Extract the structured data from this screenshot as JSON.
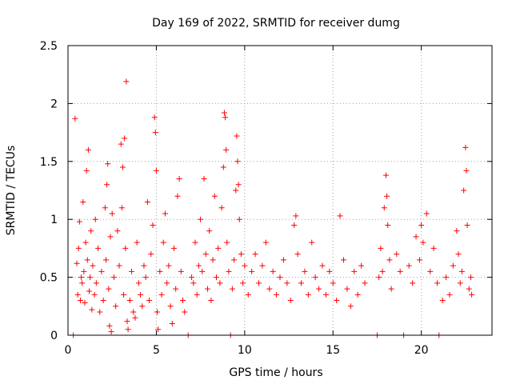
{
  "chart_data": {
    "type": "scatter",
    "title": "Day 169 of 2022, SRMTID for receiver dumg",
    "xlabel": "GPS time / hours",
    "ylabel": "SRMTID / TECUs",
    "xlim": [
      0,
      24
    ],
    "ylim": [
      0,
      2.5
    ],
    "xticks": [
      0,
      5,
      10,
      15,
      20
    ],
    "xtick_labels": [
      "0",
      "5",
      "10",
      "15",
      "20"
    ],
    "yticks": [
      0,
      0.5,
      1,
      1.5,
      2,
      2.5
    ],
    "ytick_labels": [
      "0",
      "0.5",
      "1",
      "1.5",
      "2",
      "2.5"
    ],
    "grid": true,
    "marker": "+",
    "color": "#ff0000",
    "series": [
      {
        "points": [
          [
            0.3,
            0.0
          ],
          [
            0.4,
            1.87
          ],
          [
            0.5,
            0.62
          ],
          [
            0.55,
            0.35
          ],
          [
            0.6,
            0.75
          ],
          [
            0.65,
            0.98
          ],
          [
            0.7,
            0.3
          ],
          [
            0.75,
            0.5
          ],
          [
            0.8,
            0.45
          ],
          [
            0.85,
            1.15
          ],
          [
            0.9,
            0.55
          ],
          [
            0.95,
            0.28
          ],
          [
            1.0,
            0.8
          ],
          [
            1.05,
            1.42
          ],
          [
            1.1,
            0.65
          ],
          [
            1.15,
            1.6
          ],
          [
            1.2,
            0.38
          ],
          [
            1.25,
            0.5
          ],
          [
            1.3,
            0.9
          ],
          [
            1.35,
            0.22
          ],
          [
            1.4,
            0.6
          ],
          [
            1.5,
            0.35
          ],
          [
            1.55,
            1.0
          ],
          [
            1.6,
            0.45
          ],
          [
            1.7,
            0.75
          ],
          [
            1.8,
            0.2
          ],
          [
            1.9,
            0.55
          ],
          [
            2.0,
            0.3
          ],
          [
            2.1,
            1.1
          ],
          [
            2.15,
            0.65
          ],
          [
            2.2,
            1.3
          ],
          [
            2.25,
            1.48
          ],
          [
            2.3,
            0.4
          ],
          [
            2.35,
            0.08
          ],
          [
            2.4,
            0.85
          ],
          [
            2.45,
            0.03
          ],
          [
            2.5,
            1.05
          ],
          [
            2.6,
            0.5
          ],
          [
            2.7,
            0.25
          ],
          [
            2.8,
            0.9
          ],
          [
            2.9,
            0.6
          ],
          [
            3.0,
            1.65
          ],
          [
            3.05,
            1.1
          ],
          [
            3.1,
            1.45
          ],
          [
            3.15,
            0.35
          ],
          [
            3.2,
            1.7
          ],
          [
            3.25,
            0.75
          ],
          [
            3.3,
            2.19
          ],
          [
            3.35,
            0.12
          ],
          [
            3.4,
            0.05
          ],
          [
            3.5,
            0.3
          ],
          [
            3.6,
            0.55
          ],
          [
            3.7,
            0.2
          ],
          [
            3.8,
            0.15
          ],
          [
            3.9,
            0.8
          ],
          [
            4.0,
            0.45
          ],
          [
            4.1,
            0.35
          ],
          [
            4.2,
            0.25
          ],
          [
            4.3,
            0.6
          ],
          [
            4.4,
            0.5
          ],
          [
            4.5,
            1.15
          ],
          [
            4.6,
            0.3
          ],
          [
            4.7,
            0.7
          ],
          [
            4.8,
            0.95
          ],
          [
            4.9,
            1.88
          ],
          [
            4.95,
            1.75
          ],
          [
            5.0,
            1.42
          ],
          [
            5.05,
            0.2
          ],
          [
            5.1,
            0.05
          ],
          [
            5.2,
            0.55
          ],
          [
            5.3,
            0.35
          ],
          [
            5.4,
            0.8
          ],
          [
            5.5,
            1.05
          ],
          [
            5.6,
            0.45
          ],
          [
            5.7,
            0.6
          ],
          [
            5.8,
            0.25
          ],
          [
            5.9,
            0.1
          ],
          [
            6.0,
            0.75
          ],
          [
            6.1,
            0.4
          ],
          [
            6.2,
            1.2
          ],
          [
            6.3,
            1.35
          ],
          [
            6.4,
            0.55
          ],
          [
            6.5,
            0.3
          ],
          [
            6.6,
            0.2
          ],
          [
            6.8,
            0.0
          ],
          [
            7.0,
            0.5
          ],
          [
            7.1,
            0.45
          ],
          [
            7.2,
            0.8
          ],
          [
            7.3,
            0.35
          ],
          [
            7.4,
            0.6
          ],
          [
            7.5,
            1.0
          ],
          [
            7.6,
            0.55
          ],
          [
            7.7,
            1.35
          ],
          [
            7.8,
            0.7
          ],
          [
            7.9,
            0.4
          ],
          [
            8.0,
            0.9
          ],
          [
            8.1,
            0.3
          ],
          [
            8.2,
            0.65
          ],
          [
            8.3,
            1.2
          ],
          [
            8.4,
            0.5
          ],
          [
            8.5,
            0.75
          ],
          [
            8.6,
            0.45
          ],
          [
            8.7,
            1.1
          ],
          [
            8.8,
            1.45
          ],
          [
            8.85,
            1.92
          ],
          [
            8.9,
            1.88
          ],
          [
            8.95,
            1.6
          ],
          [
            9.0,
            0.8
          ],
          [
            9.1,
            0.55
          ],
          [
            9.2,
            0.0
          ],
          [
            9.3,
            0.4
          ],
          [
            9.4,
            0.65
          ],
          [
            9.5,
            1.25
          ],
          [
            9.55,
            1.72
          ],
          [
            9.6,
            1.5
          ],
          [
            9.65,
            1.3
          ],
          [
            9.7,
            1.0
          ],
          [
            9.8,
            0.7
          ],
          [
            9.9,
            0.45
          ],
          [
            10.0,
            0.6
          ],
          [
            10.2,
            0.35
          ],
          [
            10.4,
            0.55
          ],
          [
            10.6,
            0.7
          ],
          [
            10.8,
            0.45
          ],
          [
            11.0,
            0.6
          ],
          [
            11.2,
            0.8
          ],
          [
            11.4,
            0.4
          ],
          [
            11.6,
            0.55
          ],
          [
            11.8,
            0.35
          ],
          [
            12.0,
            0.5
          ],
          [
            12.2,
            0.65
          ],
          [
            12.4,
            0.45
          ],
          [
            12.6,
            0.3
          ],
          [
            12.8,
            0.95
          ],
          [
            12.9,
            1.03
          ],
          [
            13.0,
            0.7
          ],
          [
            13.2,
            0.45
          ],
          [
            13.4,
            0.55
          ],
          [
            13.6,
            0.35
          ],
          [
            13.8,
            0.8
          ],
          [
            14.0,
            0.5
          ],
          [
            14.2,
            0.4
          ],
          [
            14.4,
            0.6
          ],
          [
            14.6,
            0.35
          ],
          [
            14.8,
            0.55
          ],
          [
            15.0,
            0.45
          ],
          [
            15.2,
            0.3
          ],
          [
            15.4,
            1.03
          ],
          [
            15.6,
            0.65
          ],
          [
            15.8,
            0.4
          ],
          [
            16.0,
            0.25
          ],
          [
            16.2,
            0.55
          ],
          [
            16.4,
            0.35
          ],
          [
            16.6,
            0.6
          ],
          [
            16.8,
            0.45
          ],
          [
            17.5,
            0.0
          ],
          [
            17.6,
            0.5
          ],
          [
            17.7,
            0.75
          ],
          [
            17.8,
            0.55
          ],
          [
            17.9,
            1.1
          ],
          [
            18.0,
            1.38
          ],
          [
            18.05,
            1.2
          ],
          [
            18.1,
            0.95
          ],
          [
            18.2,
            0.65
          ],
          [
            18.3,
            0.4
          ],
          [
            18.6,
            0.7
          ],
          [
            18.8,
            0.55
          ],
          [
            19.0,
            0.0
          ],
          [
            19.3,
            0.6
          ],
          [
            19.5,
            0.45
          ],
          [
            19.7,
            0.85
          ],
          [
            19.9,
            0.65
          ],
          [
            20.0,
            0.95
          ],
          [
            20.1,
            0.8
          ],
          [
            20.3,
            1.05
          ],
          [
            20.5,
            0.55
          ],
          [
            20.7,
            0.75
          ],
          [
            20.9,
            0.45
          ],
          [
            21.0,
            0.0
          ],
          [
            21.2,
            0.3
          ],
          [
            21.4,
            0.5
          ],
          [
            21.6,
            0.35
          ],
          [
            21.8,
            0.6
          ],
          [
            22.0,
            0.9
          ],
          [
            22.1,
            0.7
          ],
          [
            22.2,
            0.45
          ],
          [
            22.3,
            0.55
          ],
          [
            22.4,
            1.25
          ],
          [
            22.5,
            1.62
          ],
          [
            22.55,
            1.42
          ],
          [
            22.6,
            0.95
          ],
          [
            22.7,
            0.4
          ],
          [
            22.8,
            0.5
          ],
          [
            22.85,
            0.35
          ]
        ]
      }
    ]
  }
}
